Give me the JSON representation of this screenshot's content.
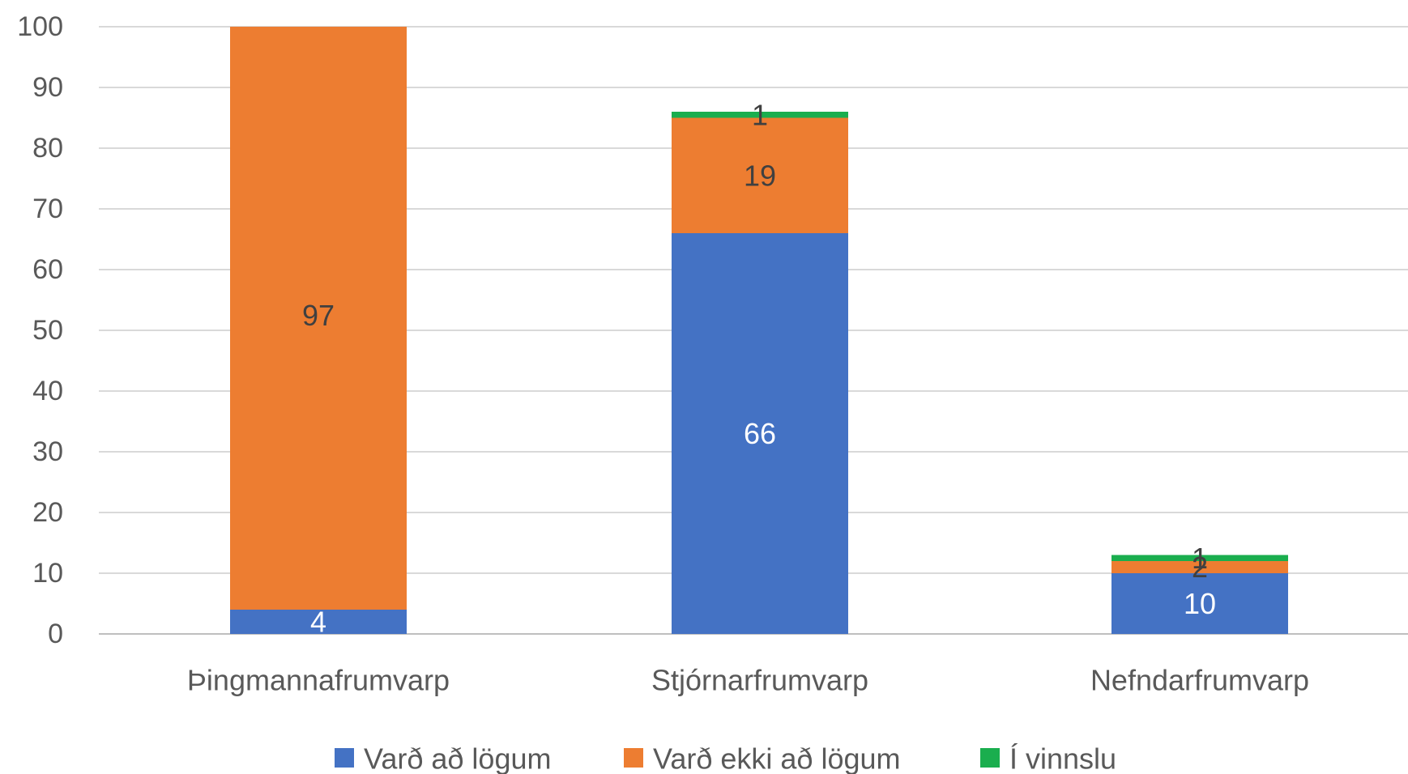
{
  "chart_data": {
    "type": "bar",
    "stacked": true,
    "title": "",
    "xlabel": "",
    "ylabel": "",
    "ylim": [
      0,
      100
    ],
    "yticks": [
      0,
      10,
      20,
      30,
      40,
      50,
      60,
      70,
      80,
      90,
      100
    ],
    "grid": true,
    "legend_position": "bottom",
    "categories": [
      "Þingmannafrumvarp",
      "Stjórnarfrumvarp",
      "Nefndarfrumvarp"
    ],
    "series": [
      {
        "name": "Varð að lögum",
        "color": "#4472C4",
        "label_color": "#ffffff",
        "values": [
          4,
          66,
          10
        ]
      },
      {
        "name": "Varð ekki að lögum",
        "color": "#ED7D31",
        "label_color": "#404040",
        "values": [
          97,
          19,
          2
        ]
      },
      {
        "name": "Í vinnslu",
        "color": "#1AAE4E",
        "label_color": "#404040",
        "values": [
          0,
          1,
          1
        ]
      }
    ],
    "data_labels": [
      [
        "4",
        "97",
        ""
      ],
      [
        "66",
        "19",
        "1"
      ],
      [
        "10",
        "2",
        "1"
      ]
    ]
  }
}
